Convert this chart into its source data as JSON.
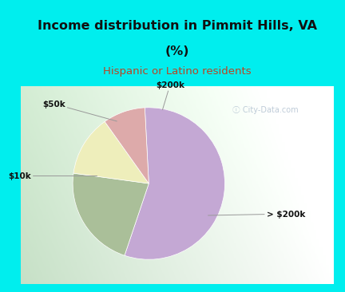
{
  "title_line1": "Income distribution in Pimmit Hills, VA",
  "title_line2": "(%)",
  "subtitle": "Hispanic or Latino residents",
  "slices": [
    {
      "label": "> $200k",
      "value": 56,
      "color": "#C4A8D4"
    },
    {
      "label": "$10k",
      "value": 22,
      "color": "#AABF99"
    },
    {
      "label": "$50k",
      "value": 13,
      "color": "#EEEEBB"
    },
    {
      "label": "$200k",
      "value": 9,
      "color": "#DDAAAA"
    }
  ],
  "bg_color": "#00EEEE",
  "chart_bg_left": "#BDDDC8",
  "chart_bg_right": "#FFFFFF",
  "title_color": "#111111",
  "subtitle_color": "#BB4422",
  "watermark": "City-Data.com",
  "start_angle": 93
}
